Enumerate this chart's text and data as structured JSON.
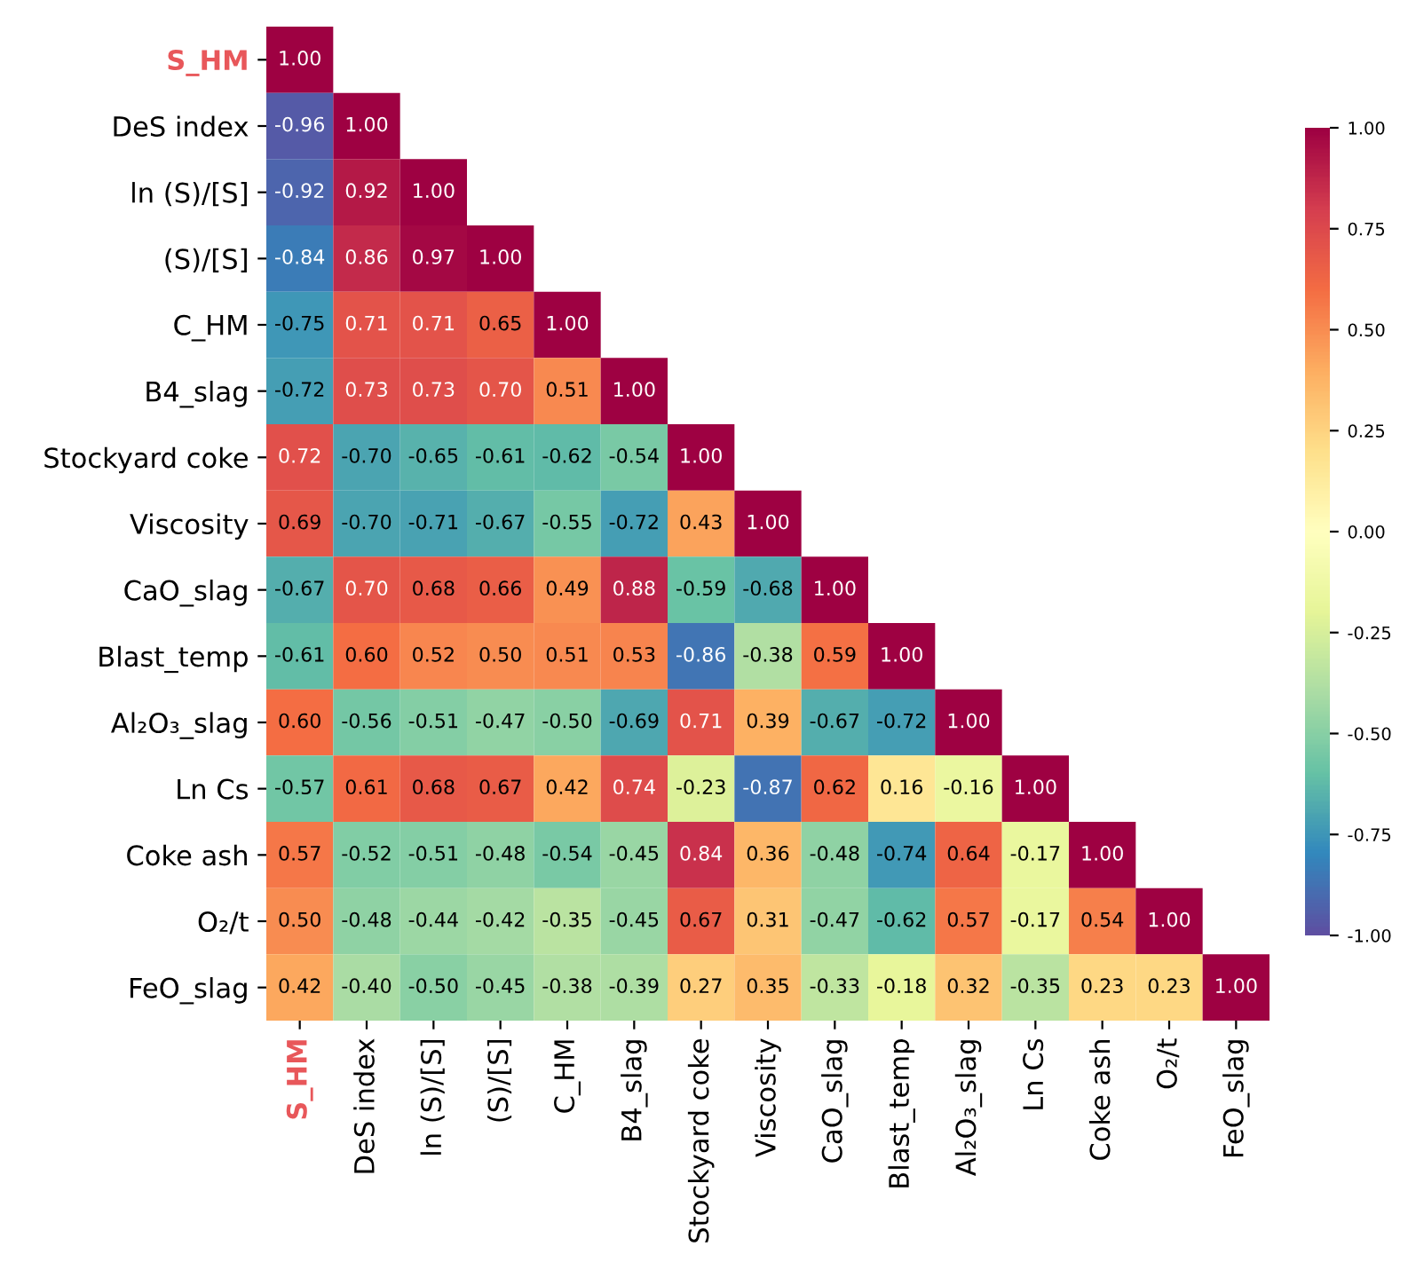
{
  "chart_data": {
    "type": "heatmap",
    "categories": [
      "S_HM",
      "DeS index",
      "ln (S)/[S]",
      "(S)/[S]",
      "C_HM",
      "B4_slag",
      "Stockyard coke",
      "Viscosity",
      "CaO_slag",
      "Blast_temp",
      "Al₂O₃_slag",
      "Ln Cs",
      "Coke ash",
      "O₂/t",
      "FeO_slag"
    ],
    "y_categories": [
      "S_HM",
      "DeS index",
      "ln (S)/[S]",
      "(S)/[S]",
      "C_HM",
      "B4_slag",
      "Stockyard coke",
      "Viscosity",
      "CaO_slag",
      "Blast_temp",
      "Al₂O₃_slag",
      "Ln Cs",
      "Coke ash",
      "O₂/t",
      "FeO_slag"
    ],
    "cells": [
      [
        1.0,
        null,
        null,
        null,
        null,
        null,
        null,
        null,
        null,
        null,
        null,
        null,
        null,
        null,
        null
      ],
      [
        -0.96,
        1.0,
        null,
        null,
        null,
        null,
        null,
        null,
        null,
        null,
        null,
        null,
        null,
        null,
        null
      ],
      [
        -0.92,
        0.92,
        1.0,
        null,
        null,
        null,
        null,
        null,
        null,
        null,
        null,
        null,
        null,
        null,
        null
      ],
      [
        -0.84,
        0.86,
        0.97,
        1.0,
        null,
        null,
        null,
        null,
        null,
        null,
        null,
        null,
        null,
        null,
        null
      ],
      [
        -0.75,
        0.71,
        0.71,
        0.65,
        1.0,
        null,
        null,
        null,
        null,
        null,
        null,
        null,
        null,
        null,
        null
      ],
      [
        -0.72,
        0.73,
        0.73,
        0.7,
        0.51,
        1.0,
        null,
        null,
        null,
        null,
        null,
        null,
        null,
        null,
        null
      ],
      [
        0.72,
        -0.7,
        -0.65,
        -0.61,
        -0.62,
        -0.54,
        1.0,
        null,
        null,
        null,
        null,
        null,
        null,
        null,
        null
      ],
      [
        0.69,
        -0.7,
        -0.71,
        -0.67,
        -0.55,
        -0.72,
        0.43,
        1.0,
        null,
        null,
        null,
        null,
        null,
        null,
        null
      ],
      [
        -0.67,
        0.7,
        0.68,
        0.66,
        0.49,
        0.88,
        -0.59,
        -0.68,
        1.0,
        null,
        null,
        null,
        null,
        null,
        null
      ],
      [
        -0.61,
        0.6,
        0.52,
        0.5,
        0.51,
        0.53,
        -0.86,
        -0.38,
        0.59,
        1.0,
        null,
        null,
        null,
        null,
        null
      ],
      [
        0.6,
        -0.56,
        -0.51,
        -0.47,
        -0.5,
        -0.69,
        0.71,
        0.39,
        -0.67,
        -0.72,
        1.0,
        null,
        null,
        null,
        null
      ],
      [
        -0.57,
        0.61,
        0.68,
        0.67,
        0.42,
        0.74,
        -0.23,
        -0.87,
        0.62,
        0.16,
        -0.16,
        1.0,
        null,
        null,
        null
      ],
      [
        0.57,
        -0.52,
        -0.51,
        -0.48,
        -0.54,
        -0.45,
        0.84,
        0.36,
        -0.48,
        -0.74,
        0.64,
        -0.17,
        1.0,
        null,
        null
      ],
      [
        0.5,
        -0.48,
        -0.44,
        -0.42,
        -0.35,
        -0.45,
        0.67,
        0.31,
        -0.47,
        -0.62,
        0.57,
        -0.17,
        0.54,
        1.0,
        null
      ],
      [
        0.42,
        -0.4,
        -0.5,
        -0.45,
        -0.38,
        -0.39,
        0.27,
        0.35,
        -0.33,
        -0.18,
        0.32,
        -0.35,
        0.23,
        0.23,
        1.0
      ]
    ],
    "clim": [
      -1.0,
      1.0
    ],
    "cticks": [
      {
        "value": -1.0,
        "label": "-1.00"
      },
      {
        "value": -0.75,
        "label": "-0.75"
      },
      {
        "value": -0.5,
        "label": "-0.50"
      },
      {
        "value": -0.25,
        "label": "-0.25"
      },
      {
        "value": 0.0,
        "label": "0.00"
      },
      {
        "value": 0.25,
        "label": "0.25"
      },
      {
        "value": 0.5,
        "label": "0.50"
      },
      {
        "value": 0.75,
        "label": "0.75"
      },
      {
        "value": 1.0,
        "label": "1.00"
      }
    ],
    "cell_labels": [
      [
        "1.00",
        null,
        null,
        null,
        null,
        null,
        null,
        null,
        null,
        null,
        null,
        null,
        null,
        null,
        null
      ],
      [
        "-0.96",
        "1.00",
        null,
        null,
        null,
        null,
        null,
        null,
        null,
        null,
        null,
        null,
        null,
        null,
        null
      ],
      [
        "-0.92",
        "0.92",
        "1.00",
        null,
        null,
        null,
        null,
        null,
        null,
        null,
        null,
        null,
        null,
        null,
        null
      ],
      [
        "-0.84",
        "0.86",
        "0.97",
        "1.00",
        null,
        null,
        null,
        null,
        null,
        null,
        null,
        null,
        null,
        null,
        null
      ],
      [
        "-0.75",
        "0.71",
        "0.71",
        "0.65",
        "1.00",
        null,
        null,
        null,
        null,
        null,
        null,
        null,
        null,
        null,
        null
      ],
      [
        "-0.72",
        "0.73",
        "0.73",
        "0.70",
        "0.51",
        "1.00",
        null,
        null,
        null,
        null,
        null,
        null,
        null,
        null,
        null
      ],
      [
        "0.72",
        "-0.70",
        "-0.65",
        "-0.61",
        "-0.62",
        "-0.54",
        "1.00",
        null,
        null,
        null,
        null,
        null,
        null,
        null,
        null
      ],
      [
        "0.69",
        "-0.70",
        "-0.71",
        "-0.67",
        "-0.55",
        "-0.72",
        "0.43",
        "1.00",
        null,
        null,
        null,
        null,
        null,
        null,
        null
      ],
      [
        "-0.67",
        "0.70",
        "0.68",
        "0.66",
        "0.49",
        "0.88",
        "-0.59",
        "-0.68",
        "1.00",
        null,
        null,
        null,
        null,
        null,
        null
      ],
      [
        "-0.61",
        "0.60",
        "0.52",
        "0.50",
        "0.51",
        "0.53",
        "-0.86",
        "-0.38",
        "0.59",
        "1.00",
        null,
        null,
        null,
        null,
        null
      ],
      [
        "0.60",
        "-0.56",
        "-0.51",
        "-0.47",
        "-0.50",
        "-0.69",
        "0.71",
        "0.39",
        "-0.67",
        "-0.72",
        "1.00",
        null,
        null,
        null,
        null
      ],
      [
        "-0.57",
        "0.61",
        "0.68",
        "0.67",
        "0.42",
        "0.74",
        "-0.23",
        "-0.87",
        "0.62",
        "0.16",
        "-0.16",
        "1.00",
        null,
        null,
        null
      ],
      [
        "0.57",
        "-0.52",
        "-0.51",
        "-0.48",
        "-0.54",
        "-0.45",
        "0.84",
        "0.36",
        "-0.48",
        "-0.74",
        "0.64",
        "-0.17",
        "1.00",
        null,
        null
      ],
      [
        "0.50",
        "-0.48",
        "-0.44",
        "-0.42",
        "-0.35",
        "-0.45",
        "0.67",
        "0.31",
        "-0.47",
        "-0.62",
        "0.57",
        "-0.17",
        "0.54",
        "1.00",
        null
      ],
      [
        "0.42",
        "-0.40",
        "-0.50",
        "-0.45",
        "-0.38",
        "-0.39",
        "0.27",
        "0.35",
        "-0.33",
        "-0.18",
        "0.32",
        "-0.35",
        "0.23",
        "0.23",
        "1.00"
      ]
    ]
  }
}
